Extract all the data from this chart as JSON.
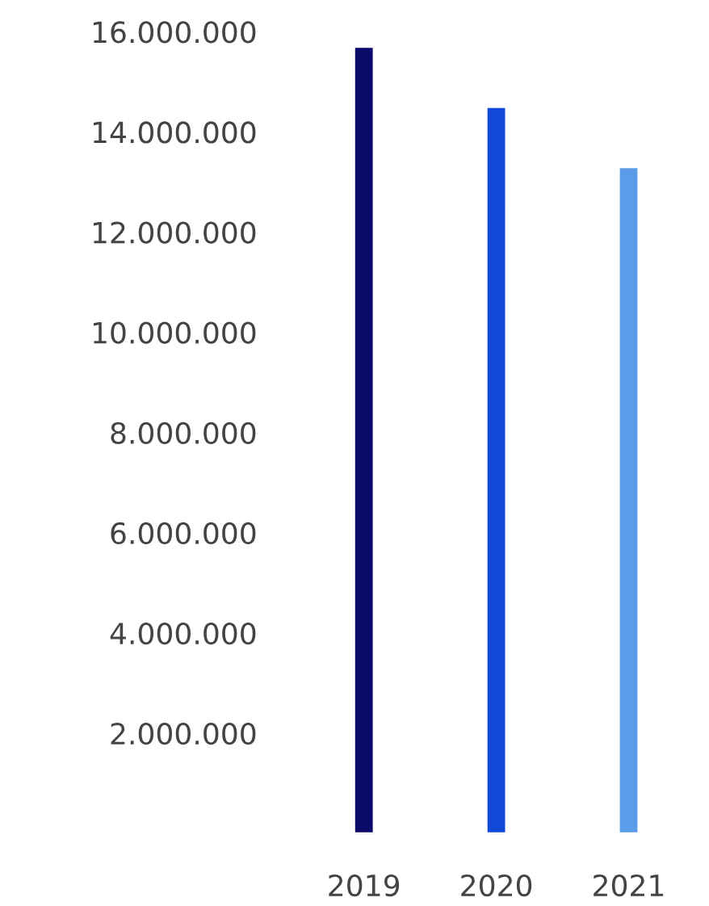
{
  "chart_data": {
    "type": "bar",
    "categories": [
      "2019",
      "2020",
      "2021"
    ],
    "values": [
      15700000,
      14500000,
      13300000
    ],
    "colors": [
      "#0b0a6b",
      "#1148d8",
      "#5a9ce8"
    ],
    "ylim": [
      0,
      16000000
    ],
    "yticks": [
      {
        "value": 2000000,
        "label": "2.000.000"
      },
      {
        "value": 4000000,
        "label": "4.000.000"
      },
      {
        "value": 6000000,
        "label": "6.000.000"
      },
      {
        "value": 8000000,
        "label": "8.000.000"
      },
      {
        "value": 10000000,
        "label": "10.000.000"
      },
      {
        "value": 12000000,
        "label": "12.000.000"
      },
      {
        "value": 14000000,
        "label": "14.000.000"
      },
      {
        "value": 16000000,
        "label": "16.000.000"
      }
    ],
    "grid": false,
    "legend": false
  }
}
